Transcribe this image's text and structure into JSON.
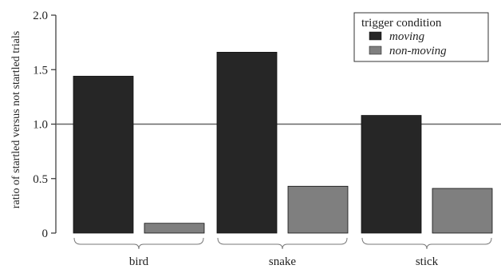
{
  "chart_data": {
    "type": "bar",
    "categories": [
      "bird",
      "snake",
      "stick"
    ],
    "series": [
      {
        "name": "moving",
        "values": [
          1.44,
          1.66,
          1.08
        ],
        "color": "#262626"
      },
      {
        "name": "non-moving",
        "values": [
          0.09,
          0.43,
          0.41
        ],
        "color": "#7f7f7f"
      }
    ],
    "ylabel": "ratio of startled versus not startled trials",
    "xlabel": "",
    "ylim": [
      0,
      2.0
    ],
    "yticks": [
      0,
      0.5,
      1.0,
      1.5,
      2.0
    ],
    "ytick_labels": [
      "0",
      "0.5",
      "1.0",
      "1.5",
      "2.0"
    ],
    "reference_line": 1.0,
    "legend": {
      "title": "trigger condition",
      "placement": "top-right"
    },
    "grid": false
  }
}
